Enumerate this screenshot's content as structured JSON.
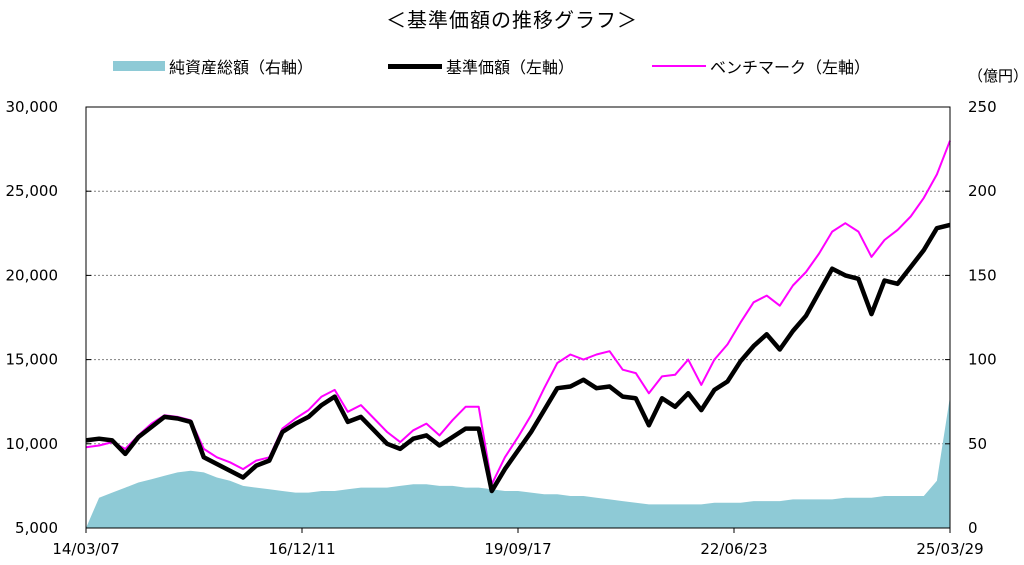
{
  "chart_data": {
    "type": "line",
    "title": "＜基準価額の推移グラフ＞",
    "unit_right": "（億円）",
    "legend": {
      "area": "純資産総額（右軸）",
      "nav": "基準価額（左軸）",
      "bench": "ベンチマーク（左軸）"
    },
    "colors": {
      "area": "#8ecad6",
      "nav": "#000000",
      "bench": "#ff00ff",
      "grid": "#808080"
    },
    "left_axis": {
      "min": 5000,
      "max": 30000,
      "ticks": [
        5000,
        10000,
        15000,
        20000,
        25000,
        30000
      ],
      "tick_labels": [
        "5,000",
        "10,000",
        "15,000",
        "20,000",
        "25,000",
        "30,000"
      ]
    },
    "right_axis": {
      "min": 0,
      "max": 250,
      "ticks": [
        0,
        50,
        100,
        150,
        200,
        250
      ],
      "tick_labels": [
        "0",
        "50",
        "100",
        "150",
        "200",
        "250"
      ]
    },
    "x_axis": {
      "min": 0,
      "max": 132,
      "ticks": [
        0,
        33,
        66,
        99,
        132
      ],
      "tick_labels": [
        "14/03/07",
        "16/12/11",
        "19/09/17",
        "22/06/23",
        "25/03/29"
      ]
    },
    "x": [
      0,
      2,
      4,
      6,
      8,
      10,
      12,
      14,
      16,
      18,
      20,
      22,
      24,
      26,
      28,
      30,
      32,
      34,
      36,
      38,
      40,
      42,
      44,
      46,
      48,
      50,
      52,
      54,
      56,
      58,
      60,
      62,
      64,
      66,
      68,
      70,
      72,
      74,
      76,
      78,
      80,
      82,
      84,
      86,
      88,
      90,
      92,
      94,
      96,
      98,
      100,
      102,
      104,
      106,
      108,
      110,
      112,
      114,
      116,
      118,
      120,
      122,
      124,
      126,
      128,
      130,
      132
    ],
    "series": [
      {
        "name": "基準価額（左軸）",
        "axis": "left",
        "values": [
          10200,
          10300,
          10200,
          9400,
          10400,
          11000,
          11600,
          11500,
          11300,
          9200,
          8800,
          8400,
          8000,
          8700,
          9000,
          10700,
          11200,
          11600,
          12300,
          12800,
          11300,
          11600,
          10800,
          10000,
          9700,
          10300,
          10500,
          9900,
          10400,
          10900,
          10900,
          7200,
          8500,
          9600,
          10700,
          12000,
          13300,
          13400,
          13800,
          13300,
          13400,
          12800,
          12700,
          11100,
          12700,
          12200,
          13000,
          12000,
          13200,
          13700,
          14900,
          15800,
          16500,
          15600,
          16700,
          17600,
          19000,
          20400,
          20000,
          19800,
          17700,
          19700,
          19500,
          20500,
          21500,
          22800,
          23000
        ]
      },
      {
        "name": "ベンチマーク（左軸）",
        "axis": "left",
        "values": [
          9800,
          9900,
          10100,
          9700,
          10500,
          11200,
          11700,
          11600,
          11400,
          9700,
          9200,
          8900,
          8500,
          9000,
          9200,
          10900,
          11500,
          12000,
          12800,
          13200,
          11900,
          12300,
          11500,
          10700,
          10100,
          10800,
          11200,
          10500,
          11400,
          12200,
          12200,
          7600,
          9200,
          10400,
          11700,
          13300,
          14800,
          15300,
          15000,
          15300,
          15500,
          14400,
          14200,
          13000,
          14000,
          14100,
          15000,
          13500,
          15000,
          15900,
          17200,
          18400,
          18800,
          18200,
          19400,
          20200,
          21300,
          22600,
          23100,
          22600,
          21100,
          22100,
          22700,
          23500,
          24600,
          26000,
          28000
        ]
      },
      {
        "name": "純資産総額（右軸）",
        "axis": "right",
        "values": [
          0,
          18,
          21,
          24,
          27,
          29,
          31,
          33,
          34,
          33,
          30,
          28,
          25,
          24,
          23,
          22,
          21,
          21,
          22,
          22,
          23,
          24,
          24,
          24,
          25,
          26,
          26,
          25,
          25,
          24,
          24,
          23,
          22,
          22,
          21,
          20,
          20,
          19,
          19,
          18,
          17,
          16,
          15,
          14,
          14,
          14,
          14,
          14,
          15,
          15,
          15,
          16,
          16,
          16,
          17,
          17,
          17,
          17,
          18,
          18,
          18,
          19,
          19,
          19,
          19,
          28,
          78
        ]
      }
    ]
  }
}
